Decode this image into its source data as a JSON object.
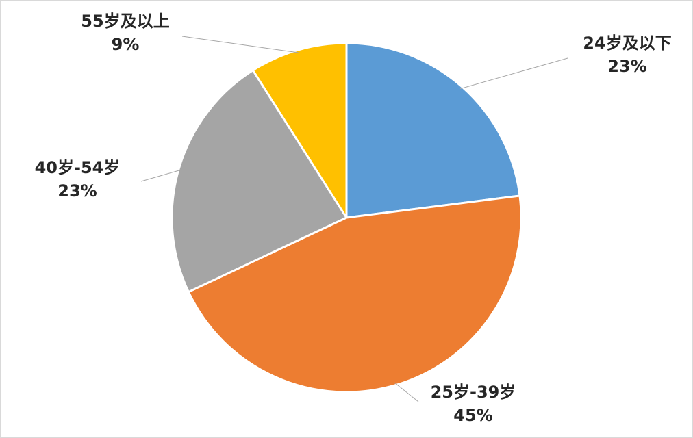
{
  "chart_data": {
    "type": "pie",
    "categories": [
      "24岁及以下",
      "25岁-39岁",
      "40岁-54岁",
      "55岁及以上"
    ],
    "values": [
      23,
      45,
      23,
      9
    ],
    "value_labels": [
      "23%",
      "45%",
      "23%",
      "9%"
    ],
    "colors": [
      "#5B9BD5",
      "#ED7D31",
      "#A5A5A5",
      "#FFC000"
    ],
    "start_angle_deg": 0,
    "direction": "clockwise",
    "legend": "none",
    "data_label_position": "outside-with-leader-lines"
  }
}
